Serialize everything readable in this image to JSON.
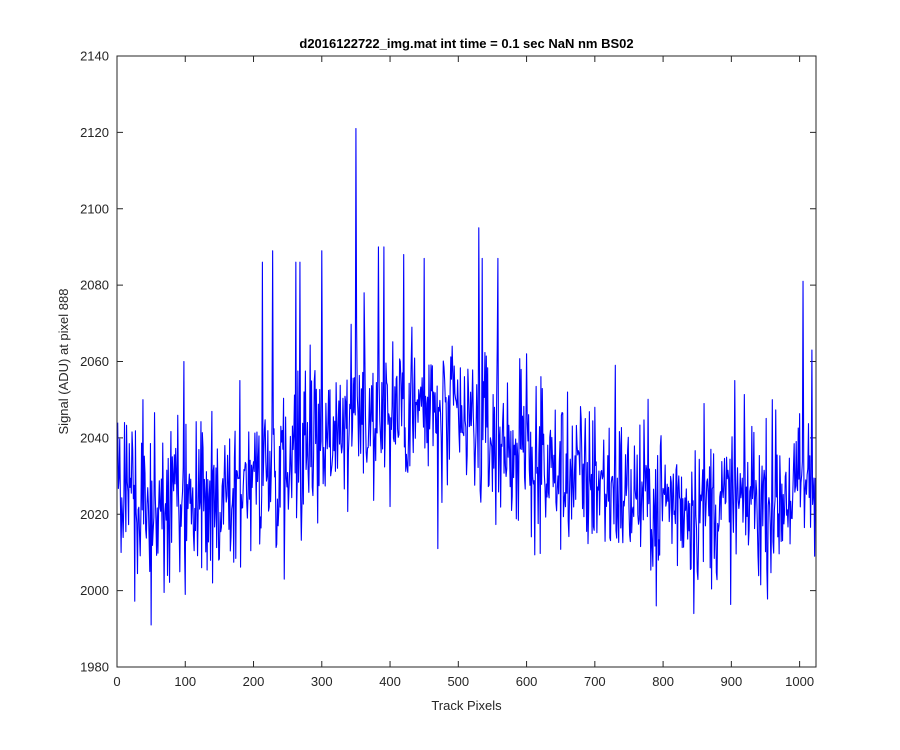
{
  "chart_data": {
    "type": "line",
    "title": "d2016122722_img.mat int time = 0.1 sec  NaN nm BS02",
    "xlabel": "Track Pixels",
    "ylabel": "Signal (ADU) at pixel 888",
    "xlim": [
      0,
      1024
    ],
    "ylim": [
      1980,
      2140
    ],
    "xticks": [
      0,
      100,
      200,
      300,
      400,
      500,
      600,
      700,
      800,
      900,
      1000
    ],
    "yticks": [
      1980,
      2000,
      2020,
      2040,
      2060,
      2080,
      2100,
      2120,
      2140
    ],
    "grid": false,
    "line_color": "#0000ff",
    "series": [
      {
        "x_start": 1,
        "x_step": 1,
        "trend_anchors": [
          [
            1,
            2022
          ],
          [
            60,
            2021
          ],
          [
            150,
            2022
          ],
          [
            250,
            2036
          ],
          [
            350,
            2046
          ],
          [
            420,
            2048
          ],
          [
            530,
            2042
          ],
          [
            640,
            2031
          ],
          [
            760,
            2025
          ],
          [
            870,
            2022
          ],
          [
            960,
            2023
          ],
          [
            1024,
            2028
          ]
        ],
        "noise_amplitude": 10,
        "peaks": [
          [
            1,
            2044
          ],
          [
            6,
            2010
          ],
          [
            11,
            2044
          ],
          [
            38,
            2050
          ],
          [
            48,
            2005
          ],
          [
            50,
            1991
          ],
          [
            98,
            2060
          ],
          [
            100,
            1999
          ],
          [
            140,
            2002
          ],
          [
            180,
            2055
          ],
          [
            213,
            2086
          ],
          [
            228,
            2089
          ],
          [
            245,
            2003
          ],
          [
            262,
            2086
          ],
          [
            268,
            2086
          ],
          [
            300,
            2089
          ],
          [
            350,
            2121
          ],
          [
            362,
            2078
          ],
          [
            383,
            2090
          ],
          [
            391,
            2090
          ],
          [
            400,
            2022
          ],
          [
            420,
            2088
          ],
          [
            432,
            2069
          ],
          [
            450,
            2087
          ],
          [
            470,
            2011
          ],
          [
            530,
            2095
          ],
          [
            535,
            2087
          ],
          [
            558,
            2087
          ],
          [
            600,
            2062
          ],
          [
            660,
            2052
          ],
          [
            680,
            2045
          ],
          [
            700,
            2048
          ],
          [
            730,
            2059
          ],
          [
            790,
            1996
          ],
          [
            845,
            1994
          ],
          [
            860,
            2049
          ],
          [
            905,
            2055
          ],
          [
            930,
            2043
          ],
          [
            960,
            2050
          ],
          [
            980,
            2031
          ],
          [
            1005,
            2081
          ],
          [
            1018,
            2063
          ],
          [
            1022,
            2009
          ]
        ],
        "seed": 888
      }
    ]
  }
}
